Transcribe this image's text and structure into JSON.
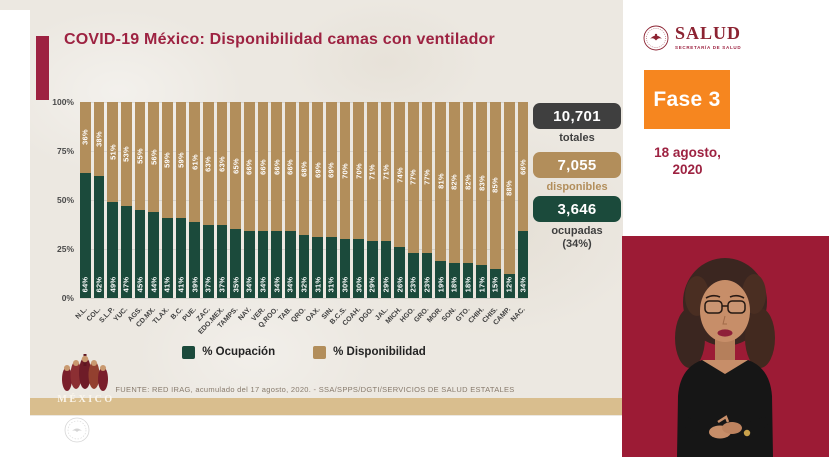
{
  "slide": {
    "title": "COVID-19 México: Disponibilidad camas con ventilador",
    "source": "FUENTE: RED IRAG, acumulado del 17 agosto, 2020. -  SSA/SPPS/DGTI/SERVICIOS DE SALUD ESTATALES",
    "mexico_wordmark": "MÉXICO"
  },
  "chart_data": {
    "type": "bar",
    "stacked": true,
    "title": "COVID-19 México: Disponibilidad camas con ventilador",
    "categories": [
      "N.L.",
      "COL.",
      "S.L.P.",
      "YUC.",
      "AGS.",
      "CD.MX.",
      "TLAX.",
      "B.C.",
      "PUE.",
      "ZAC.",
      "EDO.MEX.",
      "TAMPS.",
      "NAY.",
      "VER.",
      "Q.ROO.",
      "TAB.",
      "QRO.",
      "OAX.",
      "SIN.",
      "B.C.S.",
      "COAH.",
      "DGO.",
      "JAL.",
      "MICH.",
      "HGO.",
      "GRO.",
      "MOR.",
      "SON.",
      "GTO.",
      "CHIH.",
      "CHIS.",
      "CAMP.",
      "NAC."
    ],
    "series": [
      {
        "name": "% Ocupación",
        "color": "#1B4A3B",
        "values": [
          64,
          62,
          49,
          47,
          45,
          44,
          41,
          41,
          39,
          37,
          37,
          35,
          34,
          34,
          34,
          34,
          32,
          31,
          31,
          30,
          30,
          29,
          29,
          26,
          23,
          23,
          19,
          18,
          18,
          17,
          15,
          12,
          34
        ]
      },
      {
        "name": "% Disponibilidad",
        "color": "#B28E5B",
        "values": [
          36,
          38,
          51,
          53,
          55,
          56,
          59,
          59,
          61,
          63,
          63,
          65,
          66,
          66,
          66,
          66,
          68,
          69,
          69,
          70,
          70,
          71,
          71,
          74,
          77,
          77,
          81,
          82,
          82,
          83,
          85,
          88,
          66
        ]
      }
    ],
    "y_ticks": [
      "100%",
      "75%",
      "50%",
      "25%",
      "0%"
    ],
    "ylim": [
      0,
      100
    ],
    "value_label_suffix": "%",
    "legend_position": "bottom",
    "grid": true
  },
  "summary": {
    "totales": {
      "value": "10,701",
      "label": "totales",
      "color": "#3F3F3F"
    },
    "disponibles": {
      "value": "7,055",
      "label": "disponibles",
      "color": "#B28E5B"
    },
    "ocupadas": {
      "value": "3,646",
      "label": "ocupadas",
      "sublabel": "(34%)",
      "color": "#1B4A3B"
    }
  },
  "right_panel": {
    "logo": {
      "name": "SALUD",
      "subtitle": "SECRETARÍA DE SALUD"
    },
    "phase_badge": "Fase 3",
    "date_line1": "18 agosto,",
    "date_line2": "2020"
  },
  "colors": {
    "maroon": "#9D2241",
    "slide_background": "#ECE8E1",
    "gold_band": "#D9BE8E",
    "orange_badge": "#F6861F",
    "video_background": "#9C1B35"
  }
}
